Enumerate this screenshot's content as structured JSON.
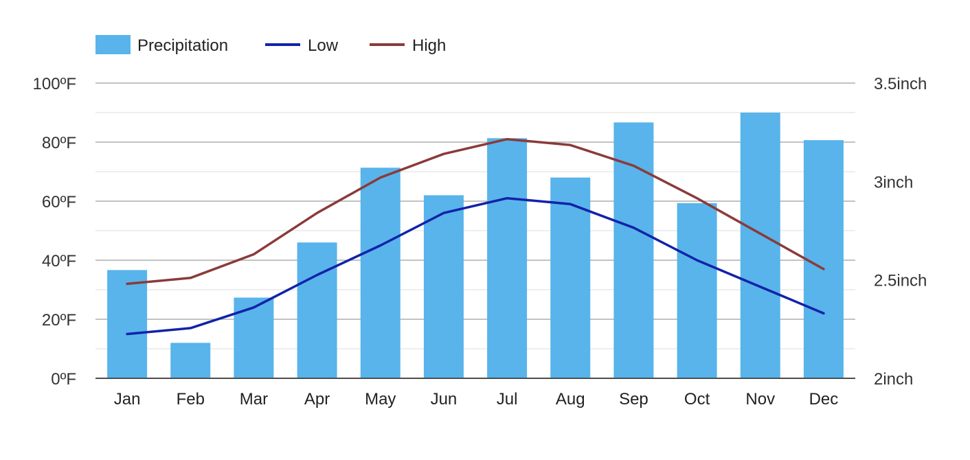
{
  "chart_data": {
    "type": "bar",
    "categories": [
      "Jan",
      "Feb",
      "Mar",
      "Apr",
      "May",
      "Jun",
      "Jul",
      "Aug",
      "Sep",
      "Oct",
      "Nov",
      "Dec"
    ],
    "series": [
      {
        "name": "Precipitation",
        "kind": "bar",
        "axis": "right",
        "color": "#58b4ea",
        "values": [
          2.55,
          2.18,
          2.41,
          2.69,
          3.07,
          2.93,
          3.22,
          3.02,
          3.3,
          2.89,
          3.35,
          3.21
        ]
      },
      {
        "name": "Low",
        "kind": "line",
        "axis": "left",
        "color": "#1122aa",
        "values": [
          15,
          17,
          24,
          35,
          45,
          56,
          61,
          59,
          51,
          40,
          31,
          22
        ]
      },
      {
        "name": "High",
        "kind": "line",
        "axis": "left",
        "color": "#8b3a3a",
        "values": [
          32,
          34,
          42,
          56,
          68,
          76,
          81,
          79,
          72,
          61,
          49,
          37
        ]
      }
    ],
    "y_left": {
      "ylim": [
        0,
        100
      ],
      "ticks": [
        0,
        20,
        40,
        60,
        80,
        100
      ],
      "tick_labels": [
        "0ºF",
        "20ºF",
        "40ºF",
        "60ºF",
        "80ºF",
        "100ºF"
      ]
    },
    "y_right": {
      "ylim": [
        2,
        3.5
      ],
      "ticks": [
        2,
        2.5,
        3,
        3.5
      ],
      "tick_labels": [
        "2inch",
        "2.5inch",
        "3inch",
        "3.5inch"
      ]
    },
    "legend_position": "top-left",
    "grid": true
  }
}
